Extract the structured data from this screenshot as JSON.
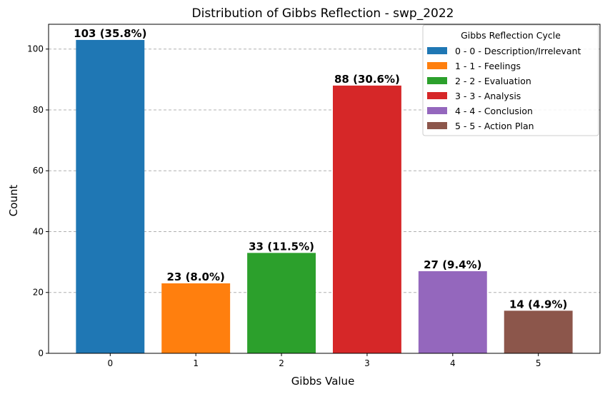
{
  "chart_data": {
    "type": "bar",
    "title": "Distribution of Gibbs Reflection - swp_2022",
    "xlabel": "Gibbs Value",
    "ylabel": "Count",
    "categories": [
      "0",
      "1",
      "2",
      "3",
      "4",
      "5"
    ],
    "values": [
      103,
      23,
      33,
      88,
      27,
      14
    ],
    "data_labels": [
      "103 (35.8%)",
      "23 (8.0%)",
      "33 (11.5%)",
      "88 (30.6%)",
      "27 (9.4%)",
      "14 (4.9%)"
    ],
    "colors": [
      "#1f77b4",
      "#ff7f0e",
      "#2ca02c",
      "#d62728",
      "#9467bd",
      "#8c564b"
    ],
    "ylim": [
      0,
      108.15
    ],
    "yticks": [
      0,
      20,
      40,
      60,
      80,
      100
    ],
    "grid": "y-dashed",
    "legend": {
      "title": "Gibbs Reflection Cycle",
      "placement": "top-right",
      "entries": [
        "0 - 0 - Description/Irrelevant",
        "1 - 1 - Feelings",
        "2 - 2 - Evaluation",
        "3 - 3 - Analysis",
        "4 - 4 - Conclusion",
        "5 - 5 - Action Plan"
      ]
    }
  }
}
